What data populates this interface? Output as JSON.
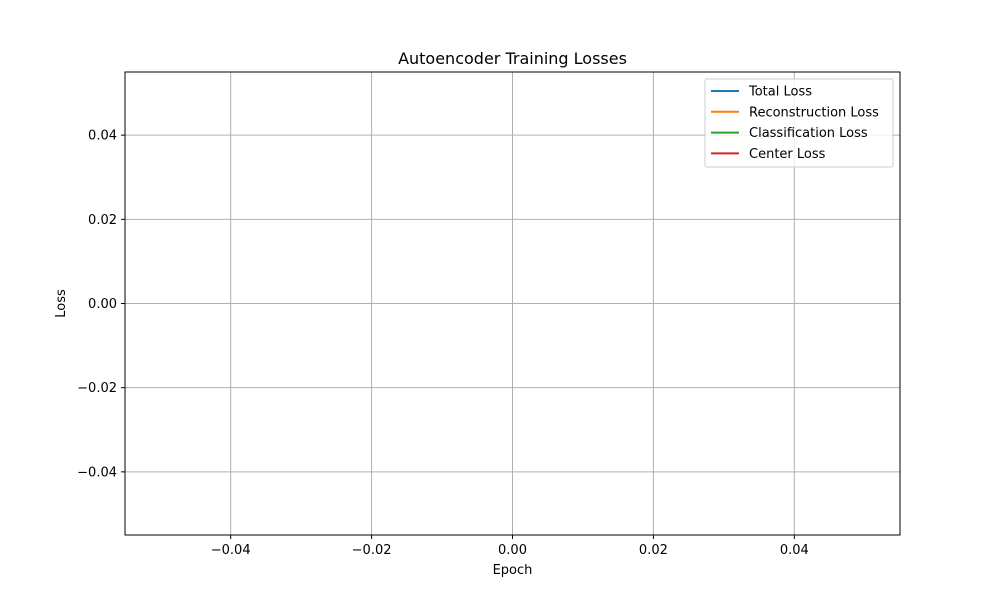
{
  "chart_data": {
    "type": "line",
    "title": "Autoencoder Training Losses",
    "xlabel": "Epoch",
    "ylabel": "Loss",
    "xlim": [
      -0.055,
      0.055
    ],
    "ylim": [
      -0.055,
      0.055
    ],
    "xticks": [
      -0.04,
      -0.02,
      0.0,
      0.02,
      0.04
    ],
    "yticks": [
      -0.04,
      -0.02,
      0.0,
      0.02,
      0.04
    ],
    "xtick_labels": [
      "−0.04",
      "−0.02",
      "0.00",
      "0.02",
      "0.04"
    ],
    "ytick_labels": [
      "−0.04",
      "−0.02",
      "0.00",
      "0.02",
      "0.04"
    ],
    "grid": true,
    "legend_position": "top-right",
    "series": [
      {
        "name": "Total Loss",
        "color": "#1f77b4",
        "x": [],
        "y": []
      },
      {
        "name": "Reconstruction Loss",
        "color": "#ff7f0e",
        "x": [],
        "y": []
      },
      {
        "name": "Classification Loss",
        "color": "#2ca02c",
        "x": [],
        "y": []
      },
      {
        "name": "Center Loss",
        "color": "#d62728",
        "x": [],
        "y": []
      }
    ]
  }
}
